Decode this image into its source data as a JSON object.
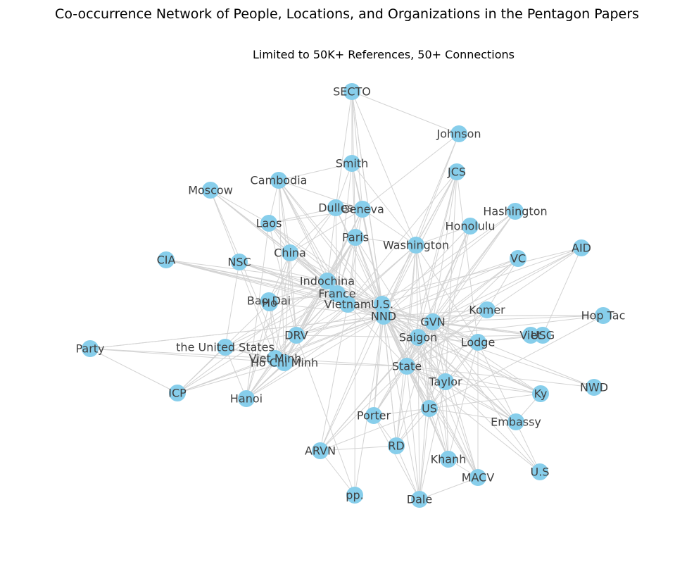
{
  "title": "Co-occurrence Network of People, Locations, and Organizations in the Pentagon Papers",
  "subtitle": "Limited to 50K+ References, 50+ Connections",
  "colors": {
    "node": "#87ceeb",
    "edge": "#d3d3d3",
    "label": "#3f3f3f"
  },
  "nodes": [
    {
      "id": "secto",
      "label": "SECTO"
    },
    {
      "id": "johnson",
      "label": "Johnson"
    },
    {
      "id": "smith",
      "label": "Smith"
    },
    {
      "id": "jcs",
      "label": "JCS"
    },
    {
      "id": "cambodia",
      "label": "Cambodia"
    },
    {
      "id": "moscow",
      "label": "Moscow"
    },
    {
      "id": "dulles",
      "label": "Dulles"
    },
    {
      "id": "geneva",
      "label": "Geneva"
    },
    {
      "id": "hashington",
      "label": "Hashington"
    },
    {
      "id": "laos",
      "label": "Laos"
    },
    {
      "id": "honolulu",
      "label": "Honolulu"
    },
    {
      "id": "paris",
      "label": "Paris"
    },
    {
      "id": "washington",
      "label": "Washington"
    },
    {
      "id": "aid",
      "label": "AID"
    },
    {
      "id": "china",
      "label": "China"
    },
    {
      "id": "cia",
      "label": "CIA"
    },
    {
      "id": "nsc",
      "label": "NSC"
    },
    {
      "id": "vc",
      "label": "VC"
    },
    {
      "id": "indochina",
      "label": "Indochina"
    },
    {
      "id": "france",
      "label": "France"
    },
    {
      "id": "baodai",
      "label": "Bao Dai"
    },
    {
      "id": "ho",
      "label": "Ho"
    },
    {
      "id": "vietnam",
      "label": "Vietnam"
    },
    {
      "id": "us_dots",
      "label": "U.S."
    },
    {
      "id": "nnd",
      "label": "NND"
    },
    {
      "id": "komer",
      "label": "Komer"
    },
    {
      "id": "hoptac",
      "label": "Hop Tac"
    },
    {
      "id": "gvn",
      "label": "GVN"
    },
    {
      "id": "drv",
      "label": "DRV"
    },
    {
      "id": "saigon",
      "label": "Saigon"
    },
    {
      "id": "viet",
      "label": "Viet"
    },
    {
      "id": "usg",
      "label": "USG"
    },
    {
      "id": "lodge",
      "label": "Lodge"
    },
    {
      "id": "party",
      "label": "Party"
    },
    {
      "id": "unitedstates",
      "label": "the United States"
    },
    {
      "id": "vietminh",
      "label": "Viet Minh"
    },
    {
      "id": "hochiminh",
      "label": "Ho Chi Minh"
    },
    {
      "id": "state",
      "label": "State"
    },
    {
      "id": "taylor",
      "label": "Taylor"
    },
    {
      "id": "nwd",
      "label": "NWD"
    },
    {
      "id": "icp",
      "label": "ICP"
    },
    {
      "id": "ky",
      "label": "Ky"
    },
    {
      "id": "hanoi",
      "label": "Hanoi"
    },
    {
      "id": "us",
      "label": "US"
    },
    {
      "id": "porter",
      "label": "Porter"
    },
    {
      "id": "embassy",
      "label": "Embassy"
    },
    {
      "id": "rd",
      "label": "RD"
    },
    {
      "id": "arvn",
      "label": "ARVN"
    },
    {
      "id": "khanh",
      "label": "Khanh"
    },
    {
      "id": "macv",
      "label": "MACV"
    },
    {
      "id": "u_s",
      "label": "U.S"
    },
    {
      "id": "pp",
      "label": "pp."
    },
    {
      "id": "dale",
      "label": "Dale"
    }
  ],
  "edges": [
    [
      "secto",
      "johnson"
    ],
    [
      "secto",
      "smith"
    ],
    [
      "secto",
      "geneva"
    ],
    [
      "secto",
      "dulles"
    ],
    [
      "secto",
      "paris"
    ],
    [
      "secto",
      "washington"
    ],
    [
      "secto",
      "nnd"
    ],
    [
      "secto",
      "us_dots"
    ],
    [
      "johnson",
      "geneva"
    ],
    [
      "johnson",
      "nnd"
    ],
    [
      "johnson",
      "washington"
    ],
    [
      "smith",
      "cambodia"
    ],
    [
      "smith",
      "geneva"
    ],
    [
      "smith",
      "dulles"
    ],
    [
      "smith",
      "paris"
    ],
    [
      "smith",
      "nnd"
    ],
    [
      "smith",
      "washington"
    ],
    [
      "smith",
      "us_dots"
    ],
    [
      "smith",
      "france"
    ],
    [
      "jcs",
      "nnd"
    ],
    [
      "jcs",
      "us_dots"
    ],
    [
      "jcs",
      "gvn"
    ],
    [
      "jcs",
      "saigon"
    ],
    [
      "jcs",
      "state"
    ],
    [
      "jcs",
      "washington"
    ],
    [
      "jcs",
      "vietnam"
    ],
    [
      "jcs",
      "taylor"
    ],
    [
      "jcs",
      "lodge"
    ],
    [
      "cambodia",
      "laos"
    ],
    [
      "cambodia",
      "china"
    ],
    [
      "cambodia",
      "indochina"
    ],
    [
      "cambodia",
      "france"
    ],
    [
      "cambodia",
      "nnd"
    ],
    [
      "cambodia",
      "us_dots"
    ],
    [
      "cambodia",
      "vietnam"
    ],
    [
      "cambodia",
      "geneva"
    ],
    [
      "cambodia",
      "drv"
    ],
    [
      "cambodia",
      "hochiminh"
    ],
    [
      "moscow",
      "china"
    ],
    [
      "moscow",
      "indochina"
    ],
    [
      "moscow",
      "france"
    ],
    [
      "moscow",
      "hochiminh"
    ],
    [
      "moscow",
      "vietminh"
    ],
    [
      "moscow",
      "laos"
    ],
    [
      "dulles",
      "geneva"
    ],
    [
      "dulles",
      "france"
    ],
    [
      "dulles",
      "indochina"
    ],
    [
      "dulles",
      "nnd"
    ],
    [
      "dulles",
      "us_dots"
    ],
    [
      "dulles",
      "china"
    ],
    [
      "dulles",
      "laos"
    ],
    [
      "dulles",
      "baodai"
    ],
    [
      "geneva",
      "laos"
    ],
    [
      "geneva",
      "china"
    ],
    [
      "geneva",
      "indochina"
    ],
    [
      "geneva",
      "france"
    ],
    [
      "geneva",
      "nnd"
    ],
    [
      "geneva",
      "vietnam"
    ],
    [
      "geneva",
      "drv"
    ],
    [
      "geneva",
      "hochiminh"
    ],
    [
      "geneva",
      "washington"
    ],
    [
      "hashington",
      "nnd"
    ],
    [
      "hashington",
      "saigon"
    ],
    [
      "hashington",
      "gvn"
    ],
    [
      "hashington",
      "us_dots"
    ],
    [
      "hashington",
      "state"
    ],
    [
      "laos",
      "china"
    ],
    [
      "laos",
      "indochina"
    ],
    [
      "laos",
      "france"
    ],
    [
      "laos",
      "nnd"
    ],
    [
      "laos",
      "vietnam"
    ],
    [
      "laos",
      "drv"
    ],
    [
      "laos",
      "hanoi"
    ],
    [
      "laos",
      "us_dots"
    ],
    [
      "honolulu",
      "nnd"
    ],
    [
      "honolulu",
      "saigon"
    ],
    [
      "honolulu",
      "gvn"
    ],
    [
      "honolulu",
      "washington"
    ],
    [
      "honolulu",
      "state"
    ],
    [
      "honolulu",
      "us"
    ],
    [
      "paris",
      "france"
    ],
    [
      "paris",
      "nnd"
    ],
    [
      "paris",
      "us_dots"
    ],
    [
      "paris",
      "indochina"
    ],
    [
      "paris",
      "hanoi"
    ],
    [
      "paris",
      "drv"
    ],
    [
      "paris",
      "washington"
    ],
    [
      "paris",
      "state"
    ],
    [
      "paris",
      "saigon"
    ],
    [
      "paris",
      "pp"
    ],
    [
      "paris",
      "vietnam"
    ],
    [
      "paris",
      "hochiminh"
    ],
    [
      "washington",
      "nnd"
    ],
    [
      "washington",
      "saigon"
    ],
    [
      "washington",
      "gvn"
    ],
    [
      "washington",
      "state"
    ],
    [
      "washington",
      "us_dots"
    ],
    [
      "washington",
      "lodge"
    ],
    [
      "washington",
      "taylor"
    ],
    [
      "washington",
      "hanoi"
    ],
    [
      "washington",
      "us"
    ],
    [
      "washington",
      "vietnam"
    ],
    [
      "washington",
      "rd"
    ],
    [
      "aid",
      "gvn"
    ],
    [
      "aid",
      "nnd"
    ],
    [
      "aid",
      "saigon"
    ],
    [
      "aid",
      "usg"
    ],
    [
      "aid",
      "vietnam"
    ],
    [
      "aid",
      "state"
    ],
    [
      "china",
      "france"
    ],
    [
      "china",
      "indochina"
    ],
    [
      "china",
      "nnd"
    ],
    [
      "china",
      "us_dots"
    ],
    [
      "china",
      "vietnam"
    ],
    [
      "china",
      "hochiminh"
    ],
    [
      "china",
      "vietminh"
    ],
    [
      "china",
      "drv"
    ],
    [
      "china",
      "hanoi"
    ],
    [
      "china",
      "baodai"
    ],
    [
      "cia",
      "nnd"
    ],
    [
      "cia",
      "us_dots"
    ],
    [
      "cia",
      "vietnam"
    ],
    [
      "cia",
      "france"
    ],
    [
      "cia",
      "indochina"
    ],
    [
      "cia",
      "gvn"
    ],
    [
      "nsc",
      "nnd"
    ],
    [
      "nsc",
      "us_dots"
    ],
    [
      "nsc",
      "france"
    ],
    [
      "nsc",
      "indochina"
    ],
    [
      "nsc",
      "unitedstates"
    ],
    [
      "nsc",
      "vietnam"
    ],
    [
      "vc",
      "gvn"
    ],
    [
      "vc",
      "nnd"
    ],
    [
      "vc",
      "saigon"
    ],
    [
      "vc",
      "us_dots"
    ],
    [
      "vc",
      "state"
    ],
    [
      "vc",
      "komer"
    ],
    [
      "indochina",
      "france"
    ],
    [
      "indochina",
      "nnd"
    ],
    [
      "indochina",
      "us_dots"
    ],
    [
      "indochina",
      "vietminh"
    ],
    [
      "indochina",
      "hochiminh"
    ],
    [
      "indochina",
      "baodai"
    ],
    [
      "indochina",
      "drv"
    ],
    [
      "indochina",
      "unitedstates"
    ],
    [
      "indochina",
      "icp"
    ],
    [
      "france",
      "vietnam"
    ],
    [
      "france",
      "nnd"
    ],
    [
      "france",
      "us_dots"
    ],
    [
      "france",
      "baodai"
    ],
    [
      "france",
      "vietminh"
    ],
    [
      "france",
      "hochiminh"
    ],
    [
      "france",
      "drv"
    ],
    [
      "france",
      "unitedstates"
    ],
    [
      "france",
      "icp"
    ],
    [
      "ho",
      "nnd"
    ],
    [
      "ho",
      "france"
    ],
    [
      "ho",
      "vietminh"
    ],
    [
      "ho",
      "hochiminh"
    ],
    [
      "ho",
      "icp"
    ],
    [
      "ho",
      "hanoi"
    ],
    [
      "vietnam",
      "us_dots"
    ],
    [
      "vietnam",
      "nnd"
    ],
    [
      "vietnam",
      "gvn"
    ],
    [
      "vietnam",
      "saigon"
    ],
    [
      "vietnam",
      "drv"
    ],
    [
      "vietnam",
      "hanoi"
    ],
    [
      "vietnam",
      "arvn"
    ],
    [
      "vietnam",
      "state"
    ],
    [
      "us_dots",
      "nnd"
    ],
    [
      "us_dots",
      "gvn"
    ],
    [
      "us_dots",
      "saigon"
    ],
    [
      "us_dots",
      "state"
    ],
    [
      "us_dots",
      "lodge"
    ],
    [
      "us_dots",
      "taylor"
    ],
    [
      "us_dots",
      "us"
    ],
    [
      "us_dots",
      "porter"
    ],
    [
      "us_dots",
      "rd"
    ],
    [
      "us_dots",
      "arvn"
    ],
    [
      "us_dots",
      "khanh"
    ],
    [
      "us_dots",
      "macv"
    ],
    [
      "us_dots",
      "hanoi"
    ],
    [
      "us_dots",
      "drv"
    ],
    [
      "us_dots",
      "embassy"
    ],
    [
      "us_dots",
      "ky"
    ],
    [
      "nnd",
      "gvn"
    ],
    [
      "nnd",
      "saigon"
    ],
    [
      "nnd",
      "state"
    ],
    [
      "nnd",
      "lodge"
    ],
    [
      "nnd",
      "taylor"
    ],
    [
      "nnd",
      "us"
    ],
    [
      "nnd",
      "komer"
    ],
    [
      "nnd",
      "viet"
    ],
    [
      "nnd",
      "usg"
    ],
    [
      "nnd",
      "hoptac"
    ],
    [
      "nnd",
      "nwd"
    ],
    [
      "nnd",
      "ky"
    ],
    [
      "nnd",
      "embassy"
    ],
    [
      "nnd",
      "porter"
    ],
    [
      "nnd",
      "rd"
    ],
    [
      "nnd",
      "arvn"
    ],
    [
      "nnd",
      "khanh"
    ],
    [
      "nnd",
      "macv"
    ],
    [
      "nnd",
      "u_s"
    ],
    [
      "nnd",
      "pp"
    ],
    [
      "nnd",
      "dale"
    ],
    [
      "nnd",
      "drv"
    ],
    [
      "nnd",
      "hanoi"
    ],
    [
      "nnd",
      "hochiminh"
    ],
    [
      "nnd",
      "vietminh"
    ],
    [
      "nnd",
      "unitedstates"
    ],
    [
      "nnd",
      "party"
    ],
    [
      "nnd",
      "icp"
    ],
    [
      "komer",
      "gvn"
    ],
    [
      "komer",
      "saigon"
    ],
    [
      "komer",
      "state"
    ],
    [
      "komer",
      "rd"
    ],
    [
      "hoptac",
      "gvn"
    ],
    [
      "hoptac",
      "saigon"
    ],
    [
      "hoptac",
      "nnd"
    ],
    [
      "hoptac",
      "us"
    ],
    [
      "gvn",
      "saigon"
    ],
    [
      "gvn",
      "state"
    ],
    [
      "gvn",
      "lodge"
    ],
    [
      "gvn",
      "taylor"
    ],
    [
      "gvn",
      "us"
    ],
    [
      "gvn",
      "viet"
    ],
    [
      "gvn",
      "usg"
    ],
    [
      "gvn",
      "nwd"
    ],
    [
      "gvn",
      "ky"
    ],
    [
      "gvn",
      "embassy"
    ],
    [
      "gvn",
      "rd"
    ],
    [
      "gvn",
      "arvn"
    ],
    [
      "gvn",
      "khanh"
    ],
    [
      "gvn",
      "macv"
    ],
    [
      "gvn",
      "u_s"
    ],
    [
      "gvn",
      "porter"
    ],
    [
      "gvn",
      "dale"
    ],
    [
      "drv",
      "hanoi"
    ],
    [
      "drv",
      "hochiminh"
    ],
    [
      "drv",
      "vietminh"
    ],
    [
      "drv",
      "saigon"
    ],
    [
      "drv",
      "pp"
    ],
    [
      "saigon",
      "state"
    ],
    [
      "saigon",
      "lodge"
    ],
    [
      "saigon",
      "taylor"
    ],
    [
      "saigon",
      "us"
    ],
    [
      "saigon",
      "embassy"
    ],
    [
      "saigon",
      "ky"
    ],
    [
      "saigon",
      "khanh"
    ],
    [
      "saigon",
      "macv"
    ],
    [
      "saigon",
      "porter"
    ],
    [
      "saigon",
      "dale"
    ],
    [
      "saigon",
      "arvn"
    ],
    [
      "saigon",
      "viet"
    ],
    [
      "lodge",
      "state"
    ],
    [
      "lodge",
      "taylor"
    ],
    [
      "lodge",
      "khanh"
    ],
    [
      "lodge",
      "macv"
    ],
    [
      "lodge",
      "embassy"
    ],
    [
      "lodge",
      "us"
    ],
    [
      "party",
      "icp"
    ],
    [
      "party",
      "vietminh"
    ],
    [
      "party",
      "hochiminh"
    ],
    [
      "party",
      "nnd"
    ],
    [
      "unitedstates",
      "icp"
    ],
    [
      "unitedstates",
      "hochiminh"
    ],
    [
      "unitedstates",
      "vietminh"
    ],
    [
      "unitedstates",
      "hanoi"
    ],
    [
      "vietminh",
      "hochiminh"
    ],
    [
      "vietminh",
      "icp"
    ],
    [
      "vietminh",
      "hanoi"
    ],
    [
      "vietminh",
      "state"
    ],
    [
      "hochiminh",
      "icp"
    ],
    [
      "hochiminh",
      "hanoi"
    ],
    [
      "hochiminh",
      "state"
    ],
    [
      "state",
      "taylor"
    ],
    [
      "state",
      "us"
    ],
    [
      "state",
      "embassy"
    ],
    [
      "state",
      "khanh"
    ],
    [
      "state",
      "macv"
    ],
    [
      "state",
      "porter"
    ],
    [
      "state",
      "rd"
    ],
    [
      "state",
      "arvn"
    ],
    [
      "state",
      "dale"
    ],
    [
      "state",
      "ky"
    ],
    [
      "state",
      "u_s"
    ],
    [
      "state",
      "nwd"
    ],
    [
      "taylor",
      "khanh"
    ],
    [
      "taylor",
      "macv"
    ],
    [
      "taylor",
      "us"
    ],
    [
      "taylor",
      "embassy"
    ],
    [
      "taylor",
      "ky"
    ],
    [
      "taylor",
      "dale"
    ],
    [
      "us",
      "porter"
    ],
    [
      "us",
      "rd"
    ],
    [
      "us",
      "embassy"
    ],
    [
      "us",
      "ky"
    ],
    [
      "us",
      "dale"
    ],
    [
      "us",
      "khanh"
    ],
    [
      "us",
      "arvn"
    ],
    [
      "porter",
      "rd"
    ],
    [
      "porter",
      "dale"
    ],
    [
      "rd",
      "arvn"
    ],
    [
      "rd",
      "dale"
    ],
    [
      "embassy",
      "ky"
    ],
    [
      "embassy",
      "u_s"
    ],
    [
      "khanh",
      "macv"
    ],
    [
      "macv",
      "dale"
    ],
    [
      "arvn",
      "pp"
    ],
    [
      "viet",
      "usg"
    ],
    [
      "lodge",
      "viet"
    ],
    [
      "lodge",
      "usg"
    ]
  ]
}
